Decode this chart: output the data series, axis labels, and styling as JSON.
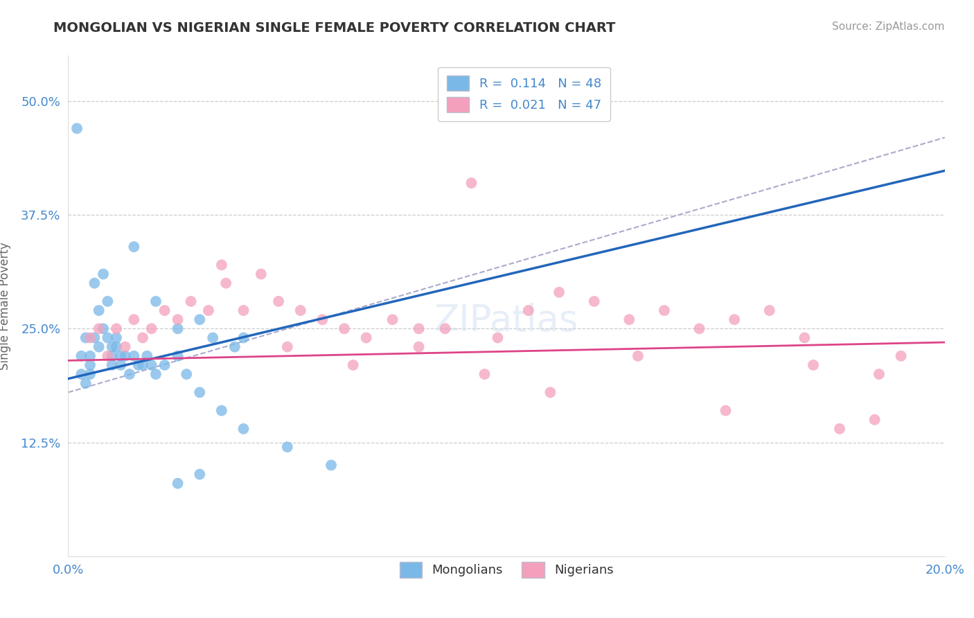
{
  "title": "MONGOLIAN VS NIGERIAN SINGLE FEMALE POVERTY CORRELATION CHART",
  "source": "Source: ZipAtlas.com",
  "ylabel": "Single Female Poverty",
  "R_mongolian": 0.114,
  "N_mongolian": 48,
  "R_nigerian": 0.021,
  "N_nigerian": 47,
  "mongolian_color": "#7ab8e8",
  "nigerian_color": "#f4a0bc",
  "mongolian_line_color": "#2266bb",
  "nigerian_line_color": "#dd4488",
  "gray_line_color": "#aaaacc",
  "background_color": "#ffffff",
  "grid_color": "#cccccc",
  "title_color": "#333333",
  "axis_label_color": "#4488cc",
  "legend_mongolians": "Mongolians",
  "legend_nigerians": "Nigerians",
  "xlim": [
    0.0,
    0.2
  ],
  "ylim": [
    0.0,
    0.55
  ],
  "xtick_vals": [
    0.0,
    0.05,
    0.1,
    0.15,
    0.2
  ],
  "xtick_labels": [
    "0.0%",
    "",
    "",
    "",
    "20.0%"
  ],
  "ytick_vals": [
    0.0,
    0.125,
    0.25,
    0.375,
    0.5
  ],
  "ytick_labels": [
    "",
    "12.5%",
    "25.0%",
    "37.5%",
    "50.0%"
  ],
  "mongolian_x": [
    0.002,
    0.003,
    0.003,
    0.004,
    0.004,
    0.005,
    0.005,
    0.005,
    0.006,
    0.006,
    0.007,
    0.007,
    0.008,
    0.008,
    0.009,
    0.009,
    0.01,
    0.01,
    0.01,
    0.011,
    0.011,
    0.012,
    0.012,
    0.013,
    0.014,
    0.015,
    0.016,
    0.017,
    0.018,
    0.019,
    0.02,
    0.022,
    0.025,
    0.027,
    0.03,
    0.033,
    0.038,
    0.04,
    0.015,
    0.02,
    0.025,
    0.03,
    0.035,
    0.04,
    0.05,
    0.06,
    0.03,
    0.025
  ],
  "mongolian_y": [
    0.47,
    0.2,
    0.22,
    0.24,
    0.19,
    0.22,
    0.21,
    0.2,
    0.3,
    0.24,
    0.27,
    0.23,
    0.31,
    0.25,
    0.28,
    0.24,
    0.21,
    0.22,
    0.23,
    0.23,
    0.24,
    0.22,
    0.21,
    0.22,
    0.2,
    0.22,
    0.21,
    0.21,
    0.22,
    0.21,
    0.2,
    0.21,
    0.22,
    0.2,
    0.26,
    0.24,
    0.23,
    0.24,
    0.34,
    0.28,
    0.25,
    0.18,
    0.16,
    0.14,
    0.12,
    0.1,
    0.09,
    0.08
  ],
  "nigerian_x": [
    0.005,
    0.007,
    0.009,
    0.011,
    0.013,
    0.015,
    0.017,
    0.019,
    0.022,
    0.025,
    0.028,
    0.032,
    0.036,
    0.04,
    0.044,
    0.048,
    0.053,
    0.058,
    0.063,
    0.068,
    0.074,
    0.08,
    0.086,
    0.092,
    0.098,
    0.105,
    0.112,
    0.12,
    0.128,
    0.136,
    0.144,
    0.152,
    0.16,
    0.168,
    0.176,
    0.184,
    0.19,
    0.035,
    0.05,
    0.065,
    0.08,
    0.095,
    0.11,
    0.13,
    0.15,
    0.17,
    0.185
  ],
  "nigerian_y": [
    0.24,
    0.25,
    0.22,
    0.25,
    0.23,
    0.26,
    0.24,
    0.25,
    0.27,
    0.26,
    0.28,
    0.27,
    0.3,
    0.27,
    0.31,
    0.28,
    0.27,
    0.26,
    0.25,
    0.24,
    0.26,
    0.23,
    0.25,
    0.41,
    0.24,
    0.27,
    0.29,
    0.28,
    0.26,
    0.27,
    0.25,
    0.26,
    0.27,
    0.24,
    0.14,
    0.15,
    0.22,
    0.32,
    0.23,
    0.21,
    0.25,
    0.2,
    0.18,
    0.22,
    0.16,
    0.21,
    0.2
  ]
}
